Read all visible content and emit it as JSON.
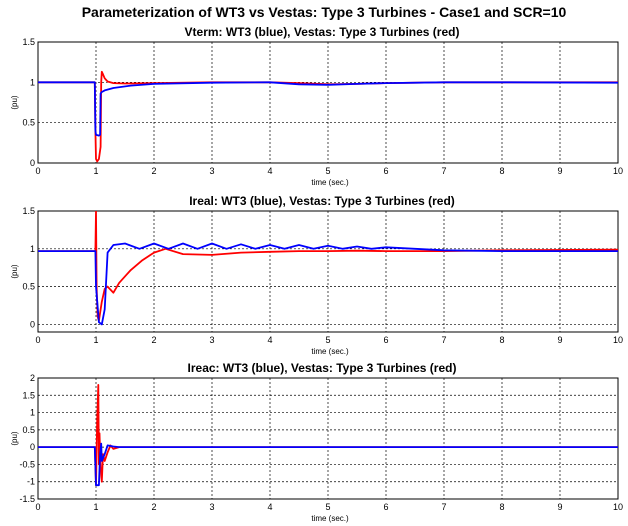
{
  "figure_title": "Parameterization of WT3 vs Vestas: Type 3 Turbines - Case1 and SCR=10",
  "colors": {
    "wt3": "#0000ff",
    "vestas": "#ff0000",
    "grid": "#000000"
  },
  "chart_data": [
    {
      "type": "line",
      "title": "Vterm: WT3 (blue), Vestas: Type 3 Turbines (red)",
      "xlabel": "time (sec.)",
      "ylabel": "(pu)",
      "xlim": [
        0,
        10
      ],
      "ylim": [
        0,
        1.5
      ],
      "xticks": [
        "0",
        "1",
        "2",
        "3",
        "4",
        "5",
        "6",
        "7",
        "8",
        "9",
        "10"
      ],
      "yticks": [
        "0",
        "0.5",
        "1",
        "1.5"
      ],
      "ytick_values": [
        0,
        0.5,
        1,
        1.5
      ],
      "grid": true,
      "series": [
        {
          "color": "vestas",
          "x": [
            0,
            0.98,
            0.99,
            1.0,
            1.02,
            1.05,
            1.08,
            1.09,
            1.1,
            1.12,
            1.15,
            1.2,
            1.3,
            1.5,
            2,
            3,
            4,
            4.5,
            5,
            5.5,
            6,
            7,
            8,
            10
          ],
          "y": [
            1,
            1,
            0.4,
            0.05,
            0.02,
            0.05,
            0.2,
            1.0,
            1.13,
            1.1,
            1.05,
            1.01,
            0.99,
            0.985,
            0.99,
            1.0,
            1.0,
            0.99,
            0.975,
            0.98,
            0.99,
            1.0,
            1.0,
            1.0
          ]
        },
        {
          "color": "wt3",
          "x": [
            0,
            0.98,
            0.99,
            1.0,
            1.05,
            1.07,
            1.08,
            1.1,
            1.15,
            1.3,
            1.6,
            2,
            3,
            4,
            4.5,
            5,
            5.5,
            6,
            7,
            8,
            10
          ],
          "y": [
            1,
            1,
            0.4,
            0.35,
            0.34,
            0.35,
            0.86,
            0.88,
            0.9,
            0.93,
            0.96,
            0.98,
            0.995,
            1.0,
            0.975,
            0.97,
            0.98,
            0.99,
            1.0,
            1.0,
            0.995
          ]
        }
      ]
    },
    {
      "type": "line",
      "title": "Ireal: WT3 (blue), Vestas: Type 3 Turbines (red)",
      "xlabel": "time (sec.)",
      "ylabel": "(pu)",
      "xlim": [
        0,
        10
      ],
      "ylim": [
        -0.1,
        1.5
      ],
      "xticks": [
        "0",
        "1",
        "2",
        "3",
        "4",
        "5",
        "6",
        "7",
        "8",
        "9",
        "10"
      ],
      "yticks": [
        "0",
        "0.5",
        "1",
        "1.5"
      ],
      "ytick_values": [
        0,
        0.5,
        1,
        1.5
      ],
      "grid": true,
      "series": [
        {
          "color": "vestas",
          "x": [
            0,
            0.99,
            1.0,
            1.01,
            1.03,
            1.05,
            1.1,
            1.15,
            1.2,
            1.3,
            1.4,
            1.6,
            1.8,
            2.0,
            2.2,
            2.5,
            3,
            3.5,
            4,
            4.5,
            5,
            5.5,
            6,
            7,
            8,
            10
          ],
          "y": [
            0.97,
            0.97,
            1.5,
            0.5,
            0.1,
            0.05,
            0.3,
            0.47,
            0.5,
            0.42,
            0.55,
            0.72,
            0.85,
            0.95,
            1.0,
            0.93,
            0.92,
            0.95,
            0.96,
            0.97,
            0.97,
            0.975,
            0.97,
            0.97,
            0.98,
            0.99
          ]
        },
        {
          "color": "wt3",
          "x": [
            0,
            0.99,
            1.0,
            1.05,
            1.1,
            1.15,
            1.2,
            1.3,
            1.5,
            1.75,
            2,
            2.25,
            2.5,
            2.75,
            3,
            3.25,
            3.5,
            3.75,
            4,
            4.25,
            4.5,
            4.75,
            5,
            5.25,
            5.5,
            5.75,
            6,
            6.5,
            7,
            8,
            10
          ],
          "y": [
            0.97,
            0.97,
            0.5,
            0.03,
            0.0,
            0.2,
            0.95,
            1.05,
            1.07,
            1.0,
            1.07,
            1.0,
            1.07,
            1.0,
            1.07,
            1.0,
            1.06,
            1.0,
            1.05,
            1.0,
            1.05,
            1.0,
            1.04,
            1.0,
            1.03,
            1.0,
            1.02,
            1.0,
            0.98,
            0.97,
            0.97
          ]
        }
      ]
    },
    {
      "type": "line",
      "title": "Ireac: WT3 (blue), Vestas: Type 3 Turbines (red)",
      "xlabel": "time (sec.)",
      "ylabel": "(pu)",
      "xlim": [
        0,
        10
      ],
      "ylim": [
        -1.5,
        2
      ],
      "xticks": [
        "0",
        "1",
        "2",
        "3",
        "4",
        "5",
        "6",
        "7",
        "8",
        "9",
        "10"
      ],
      "yticks": [
        "-1.5",
        "-1",
        "-0.5",
        "0",
        "0.5",
        "1",
        "1.5",
        "2"
      ],
      "ytick_values": [
        -1.5,
        -1,
        -0.5,
        0,
        0.5,
        1,
        1.5,
        2
      ],
      "grid": true,
      "series": [
        {
          "color": "vestas",
          "x": [
            0,
            0.98,
            1.0,
            1.02,
            1.04,
            1.05,
            1.06,
            1.08,
            1.1,
            1.12,
            1.15,
            1.2,
            1.25,
            1.3,
            1.4,
            10
          ],
          "y": [
            0,
            0,
            -1.1,
            0.8,
            1.8,
            -0.5,
            0.4,
            -0.6,
            -1.0,
            -0.2,
            -0.4,
            -0.15,
            0.05,
            -0.05,
            0,
            0
          ]
        },
        {
          "color": "wt3",
          "x": [
            0,
            0.98,
            1.0,
            1.05,
            1.07,
            1.09,
            1.1,
            1.15,
            1.2,
            1.3,
            1.4,
            10
          ],
          "y": [
            0,
            0,
            -1.1,
            -1.1,
            -0.2,
            0.1,
            -0.4,
            -0.2,
            0.05,
            0.02,
            0,
            0
          ]
        }
      ]
    }
  ]
}
